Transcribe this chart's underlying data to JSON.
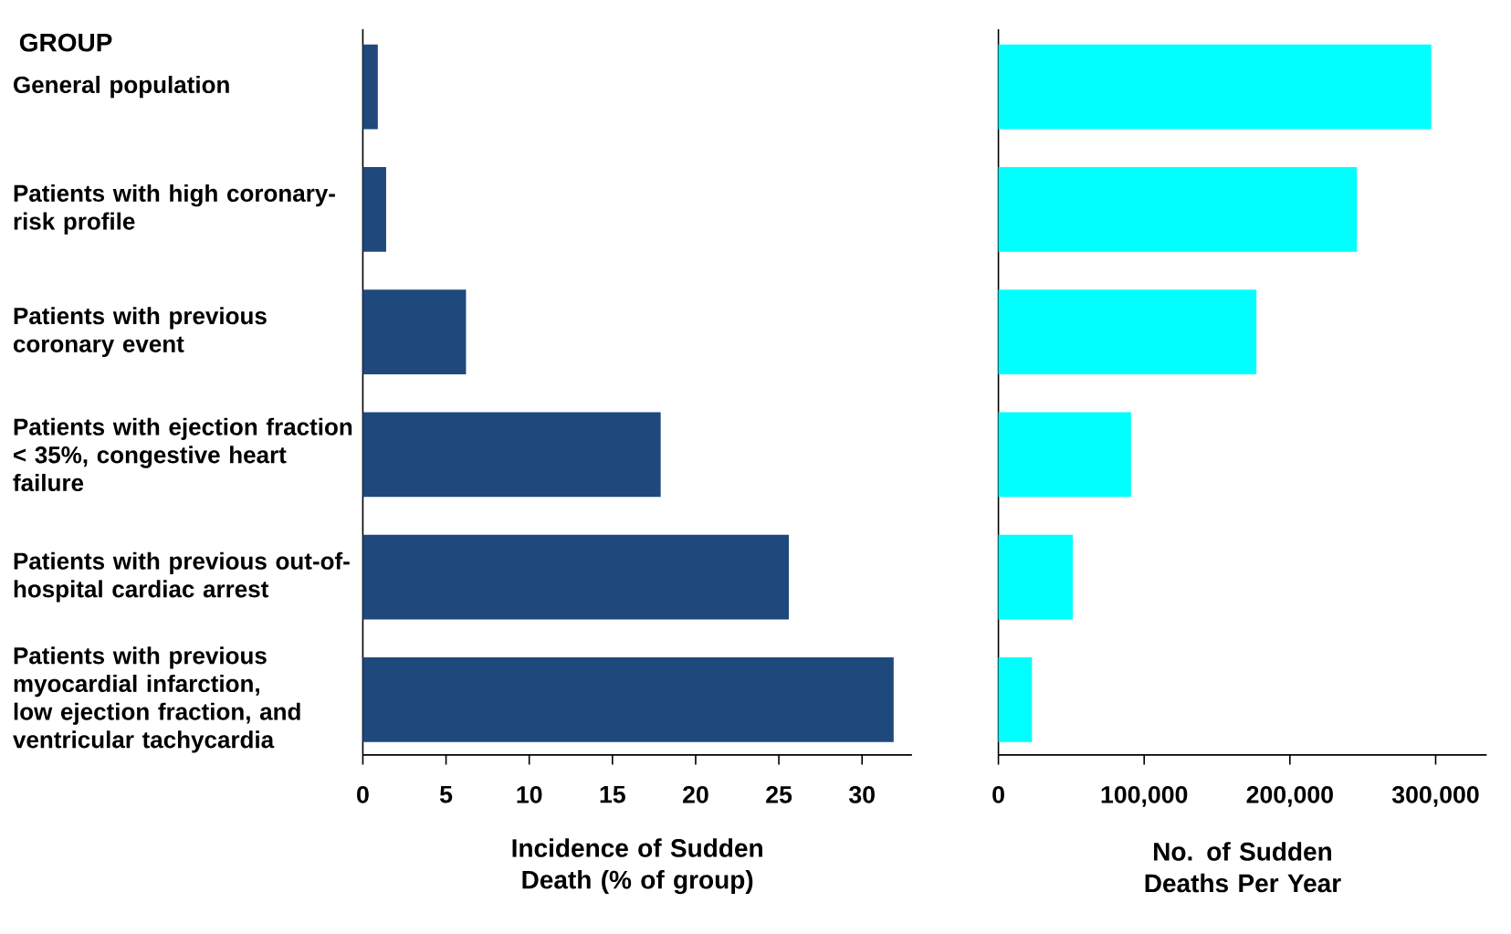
{
  "chart_data": [
    {
      "type": "bar",
      "orientation": "horizontal",
      "ylabel": "GROUP",
      "xlabel": "Incidence of Sudden Death (% of group)",
      "categories": [
        "General population",
        "Patients with high coronary-risk profile",
        "Patients with previous coronary event",
        "Patients with ejection fraction < 35%, congestive heart failure",
        "Patients with previous out-of-hospital cardiac arrest",
        "Patients with previous myocardial infarction, low ejection fraction, and ventricular tachycardia"
      ],
      "values": [
        0.9,
        1.4,
        6.2,
        17.9,
        25.6,
        31.9
      ],
      "color": "#1f497d",
      "xlim": [
        0,
        33
      ],
      "xticks": [
        0,
        5,
        10,
        15,
        20,
        25,
        30
      ]
    },
    {
      "type": "bar",
      "orientation": "horizontal",
      "xlabel": "No. of Sudden Deaths Per Year",
      "categories": [
        null,
        null,
        null,
        null,
        null,
        null
      ],
      "values": [
        297000,
        246000,
        177000,
        91000,
        51000,
        23000
      ],
      "color": "#00ffff",
      "xlim": [
        0,
        335000
      ],
      "xticks": [
        0,
        {
          "value": 100000,
          "label": "100,000"
        },
        {
          "value": 200000,
          "label": "200,000"
        },
        {
          "value": 300000,
          "label": "300,000"
        }
      ],
      "tick_labels": "x"
    }
  ]
}
